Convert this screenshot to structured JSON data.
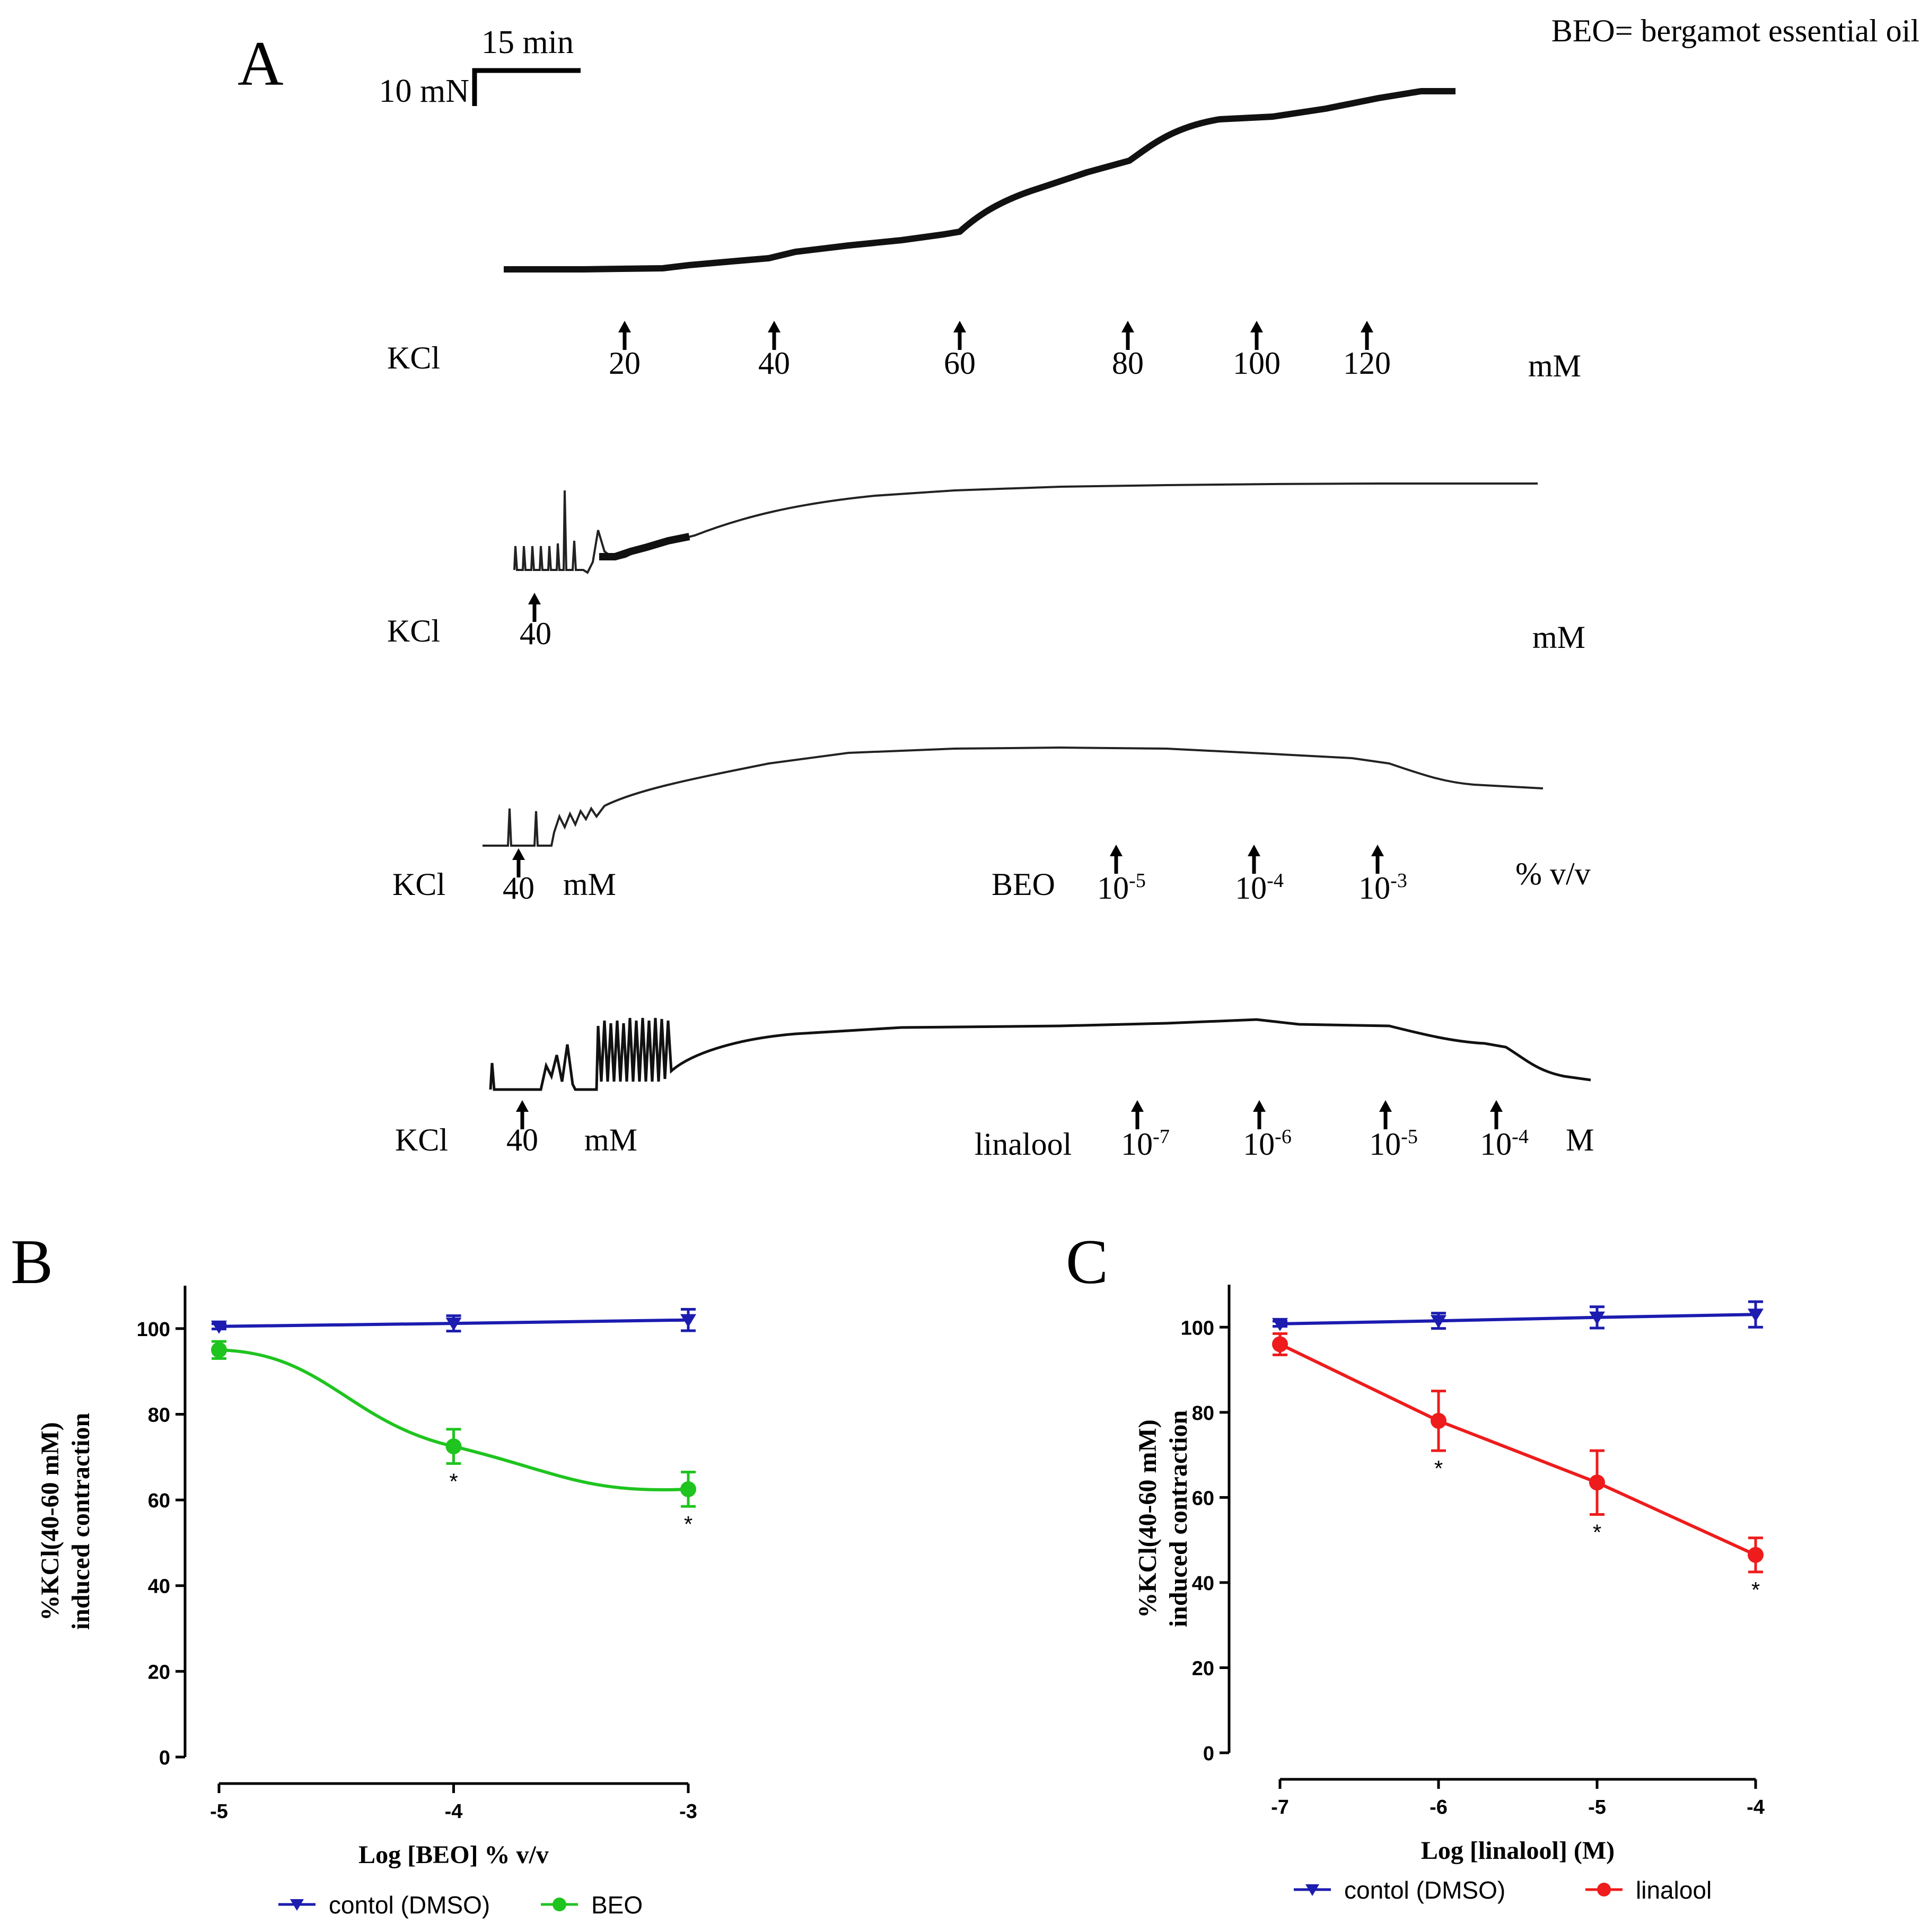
{
  "header_note": "BEO= bergamot essential oil",
  "panel_a": {
    "letter": "A",
    "scale_bar": {
      "time_label": "15 min",
      "force_label": "10 mN"
    },
    "traces": [
      {
        "agent": "KCl",
        "unit": "mM",
        "additions": [
          {
            "label": "20"
          },
          {
            "label": "40"
          },
          {
            "label": "60"
          },
          {
            "label": "80"
          },
          {
            "label": "100"
          },
          {
            "label": "120"
          }
        ]
      },
      {
        "agent": "KCl",
        "unit": "mM",
        "additions": [
          {
            "label": "40"
          }
        ]
      },
      {
        "agent": "KCl",
        "kcl_dose": "40",
        "kcl_unit": "mM",
        "drug": "BEO",
        "drug_unit": "% v/v",
        "additions": [
          {
            "base": "10",
            "exp": "-5"
          },
          {
            "base": "10",
            "exp": "-4"
          },
          {
            "base": "10",
            "exp": "-3"
          }
        ]
      },
      {
        "agent": "KCl",
        "kcl_dose": "40",
        "kcl_unit": "mM",
        "drug": "linalool",
        "drug_unit": "M",
        "additions": [
          {
            "base": "10",
            "exp": "-7"
          },
          {
            "base": "10",
            "exp": "-6"
          },
          {
            "base": "10",
            "exp": "-5"
          },
          {
            "base": "10",
            "exp": "-4"
          }
        ]
      }
    ]
  },
  "chart_data": [
    {
      "panel": "B",
      "type": "line",
      "xlabel": "Log [BEO] % v/v",
      "ylabel_line1": "%KCl(40-60 mM)",
      "ylabel_line2": "induced contraction",
      "x_ticks": [
        "-5",
        "-4",
        "-3"
      ],
      "y_ticks": [
        "0",
        "20",
        "40",
        "60",
        "80",
        "100"
      ],
      "xlim": [
        -5,
        -3
      ],
      "ylim": [
        0,
        110
      ],
      "series": [
        {
          "name": "contol (DMSO)",
          "color": "#1c1cb0",
          "marker": "triangle-down",
          "x": [
            -5,
            -4,
            -3
          ],
          "y": [
            100.5,
            101.2,
            102.0
          ],
          "err": [
            0.6,
            1.8,
            2.5
          ],
          "sig": [
            "",
            "",
            ""
          ]
        },
        {
          "name": "BEO",
          "color": "#1fc41f",
          "marker": "circle",
          "x": [
            -5,
            -4,
            -3
          ],
          "y": [
            95.0,
            72.5,
            62.5
          ],
          "err": [
            2.0,
            4.0,
            4.0
          ],
          "sig": [
            "",
            "*",
            "*"
          ]
        }
      ],
      "legend": "bottom"
    },
    {
      "panel": "C",
      "type": "line",
      "xlabel": "Log [linalool] (M)",
      "ylabel_line1": "%KCl(40-60 mM)",
      "ylabel_line2": "induced contraction",
      "x_ticks": [
        "-7",
        "-6",
        "-5",
        "-4"
      ],
      "y_ticks": [
        "0",
        "20",
        "40",
        "60",
        "80",
        "100"
      ],
      "xlim": [
        -7,
        -4
      ],
      "ylim": [
        0,
        110
      ],
      "series": [
        {
          "name": "contol (DMSO)",
          "color": "#1c1cb0",
          "marker": "triangle-down",
          "x": [
            -7,
            -6,
            -5,
            -4
          ],
          "y": [
            100.8,
            101.5,
            102.3,
            103.0
          ],
          "err": [
            0.6,
            1.8,
            2.5,
            3.0
          ],
          "sig": [
            "",
            "",
            "",
            ""
          ]
        },
        {
          "name": "linalool",
          "color": "#ee1c1c",
          "marker": "circle",
          "x": [
            -7,
            -6,
            -5,
            -4
          ],
          "y": [
            96.0,
            78.0,
            63.5,
            46.5
          ],
          "err": [
            2.5,
            7.0,
            7.5,
            4.0
          ],
          "sig": [
            "",
            "*",
            "*",
            "*"
          ]
        }
      ],
      "legend": "bottom"
    }
  ]
}
